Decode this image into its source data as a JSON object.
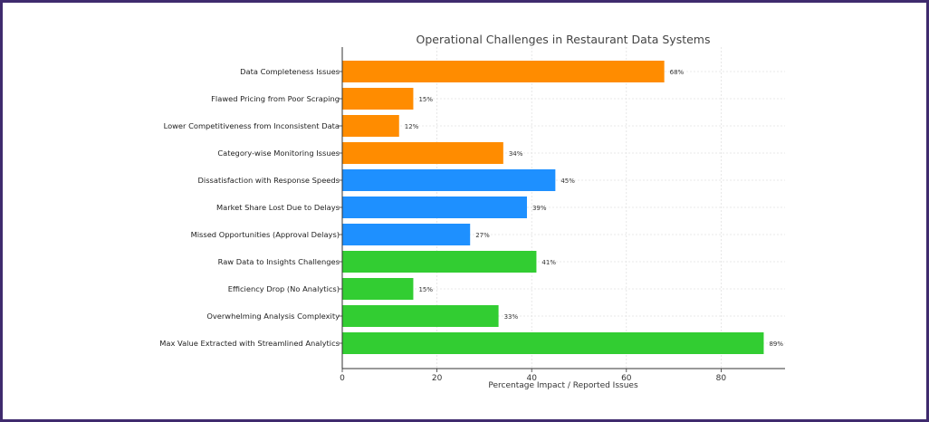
{
  "chart_data": {
    "type": "bar",
    "orientation": "horizontal",
    "title": "Operational Challenges in Restaurant Data Systems",
    "xlabel": "Percentage Impact / Reported Issues",
    "ylabel": "",
    "xlim": [
      0,
      93.5
    ],
    "xticks": [
      0,
      20,
      40,
      60,
      80
    ],
    "grid": true,
    "categories": [
      "Data Completeness Issues",
      "Flawed Pricing from Poor Scraping",
      "Lower Competitiveness from Inconsistent Data",
      "Category-wise Monitoring Issues",
      "Dissatisfaction with Response Speeds",
      "Market Share Lost Due to Delays",
      "Missed Opportunities (Approval Delays)",
      "Raw Data to Insights Challenges",
      "Efficiency Drop (No Analytics)",
      "Overwhelming Analysis Complexity",
      "Max Value Extracted with Streamlined Analytics"
    ],
    "values": [
      68,
      15,
      12,
      34,
      45,
      39,
      27,
      41,
      15,
      33,
      89
    ],
    "data_labels": [
      "68%",
      "15%",
      "12%",
      "34%",
      "45%",
      "39%",
      "27%",
      "41%",
      "15%",
      "33%",
      "89%"
    ],
    "colors": [
      "#ff8c00",
      "#ff8c00",
      "#ff8c00",
      "#ff8c00",
      "#1e90ff",
      "#1e90ff",
      "#1e90ff",
      "#32cd32",
      "#32cd32",
      "#32cd32",
      "#32cd32"
    ]
  }
}
